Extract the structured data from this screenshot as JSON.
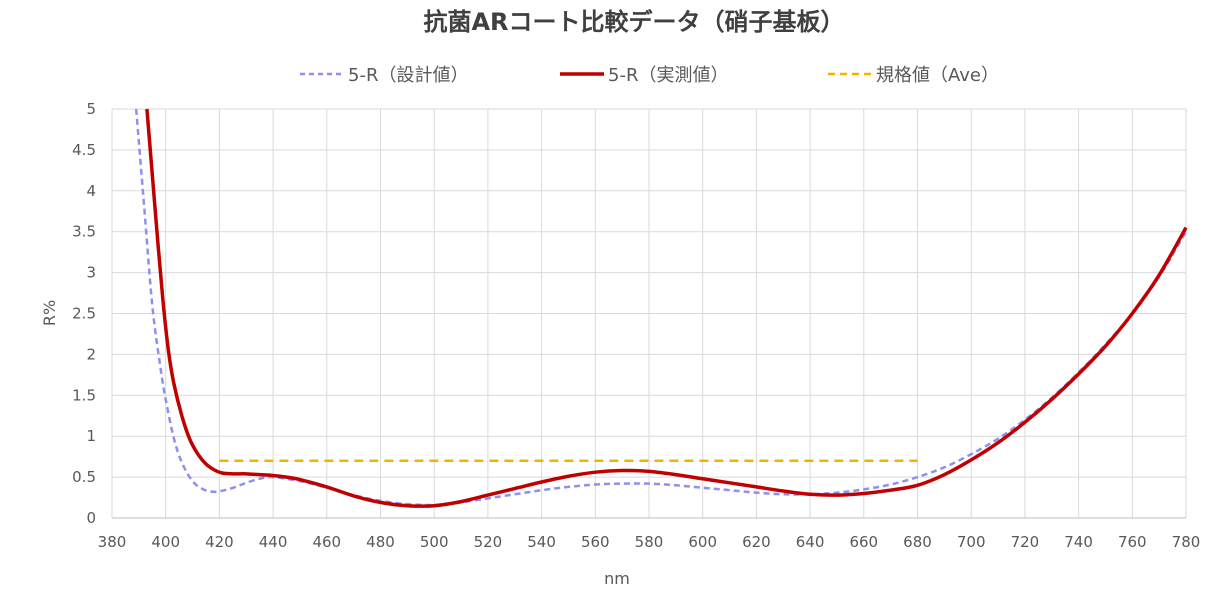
{
  "chart_data": {
    "type": "line",
    "title": "抗菌ARコート比較データ（硝子基板）",
    "xlabel": "nm",
    "ylabel": "R%",
    "xlim": [
      380,
      780
    ],
    "ylim": [
      0,
      5
    ],
    "x_ticks": [
      380,
      400,
      420,
      440,
      460,
      480,
      500,
      520,
      540,
      560,
      580,
      600,
      620,
      640,
      660,
      680,
      700,
      720,
      740,
      760,
      780
    ],
    "y_ticks": [
      0,
      0.5,
      1,
      1.5,
      2,
      2.5,
      3,
      3.5,
      4,
      4.5,
      5
    ],
    "y_tick_labels": [
      "0",
      "0.5",
      "1",
      "1.5",
      "2",
      "2.5",
      "3",
      "3.5",
      "4",
      "4.5",
      "5"
    ],
    "grid": true,
    "legend_position": "top",
    "series": [
      {
        "name": "5-R（設計値）",
        "color": "#8f8ff0",
        "style": "dashed",
        "x": [
          389,
          392,
          395,
          398,
          400,
          403,
          406,
          410,
          414,
          418,
          422,
          426,
          430,
          435,
          440,
          450,
          460,
          470,
          480,
          490,
          500,
          510,
          520,
          530,
          540,
          550,
          560,
          570,
          580,
          590,
          600,
          610,
          620,
          630,
          640,
          650,
          660,
          670,
          680,
          690,
          700,
          710,
          720,
          730,
          740,
          750,
          760,
          770,
          780
        ],
        "y": [
          5.0,
          3.8,
          2.6,
          1.85,
          1.45,
          0.98,
          0.68,
          0.45,
          0.35,
          0.32,
          0.34,
          0.38,
          0.43,
          0.48,
          0.5,
          0.45,
          0.37,
          0.28,
          0.21,
          0.17,
          0.16,
          0.19,
          0.24,
          0.29,
          0.34,
          0.38,
          0.41,
          0.42,
          0.42,
          0.4,
          0.37,
          0.34,
          0.31,
          0.29,
          0.29,
          0.31,
          0.35,
          0.41,
          0.5,
          0.62,
          0.78,
          0.97,
          1.2,
          1.47,
          1.78,
          2.12,
          2.5,
          2.95,
          3.5
        ]
      },
      {
        "name": "5-R（実測値）",
        "color": "#c00000",
        "style": "solid",
        "x": [
          393,
          395,
          397,
          399,
          401,
          403,
          406,
          409,
          412,
          415,
          418,
          421,
          425,
          430,
          435,
          440,
          445,
          450,
          460,
          470,
          480,
          490,
          500,
          510,
          520,
          530,
          540,
          550,
          560,
          570,
          580,
          590,
          600,
          610,
          620,
          630,
          640,
          650,
          660,
          670,
          680,
          690,
          700,
          710,
          720,
          730,
          740,
          750,
          760,
          770,
          780
        ],
        "y": [
          5.0,
          4.2,
          3.4,
          2.65,
          2.05,
          1.65,
          1.25,
          0.96,
          0.78,
          0.66,
          0.59,
          0.55,
          0.54,
          0.54,
          0.53,
          0.52,
          0.5,
          0.47,
          0.38,
          0.27,
          0.19,
          0.15,
          0.15,
          0.2,
          0.28,
          0.36,
          0.44,
          0.51,
          0.56,
          0.58,
          0.57,
          0.53,
          0.48,
          0.43,
          0.38,
          0.33,
          0.29,
          0.28,
          0.3,
          0.34,
          0.4,
          0.53,
          0.71,
          0.92,
          1.17,
          1.45,
          1.76,
          2.1,
          2.5,
          2.97,
          3.55
        ]
      },
      {
        "name": "規格値（Ave）",
        "color": "#f0b400",
        "style": "dashed",
        "x": [
          420,
          680
        ],
        "y": [
          0.7,
          0.7
        ]
      }
    ]
  }
}
